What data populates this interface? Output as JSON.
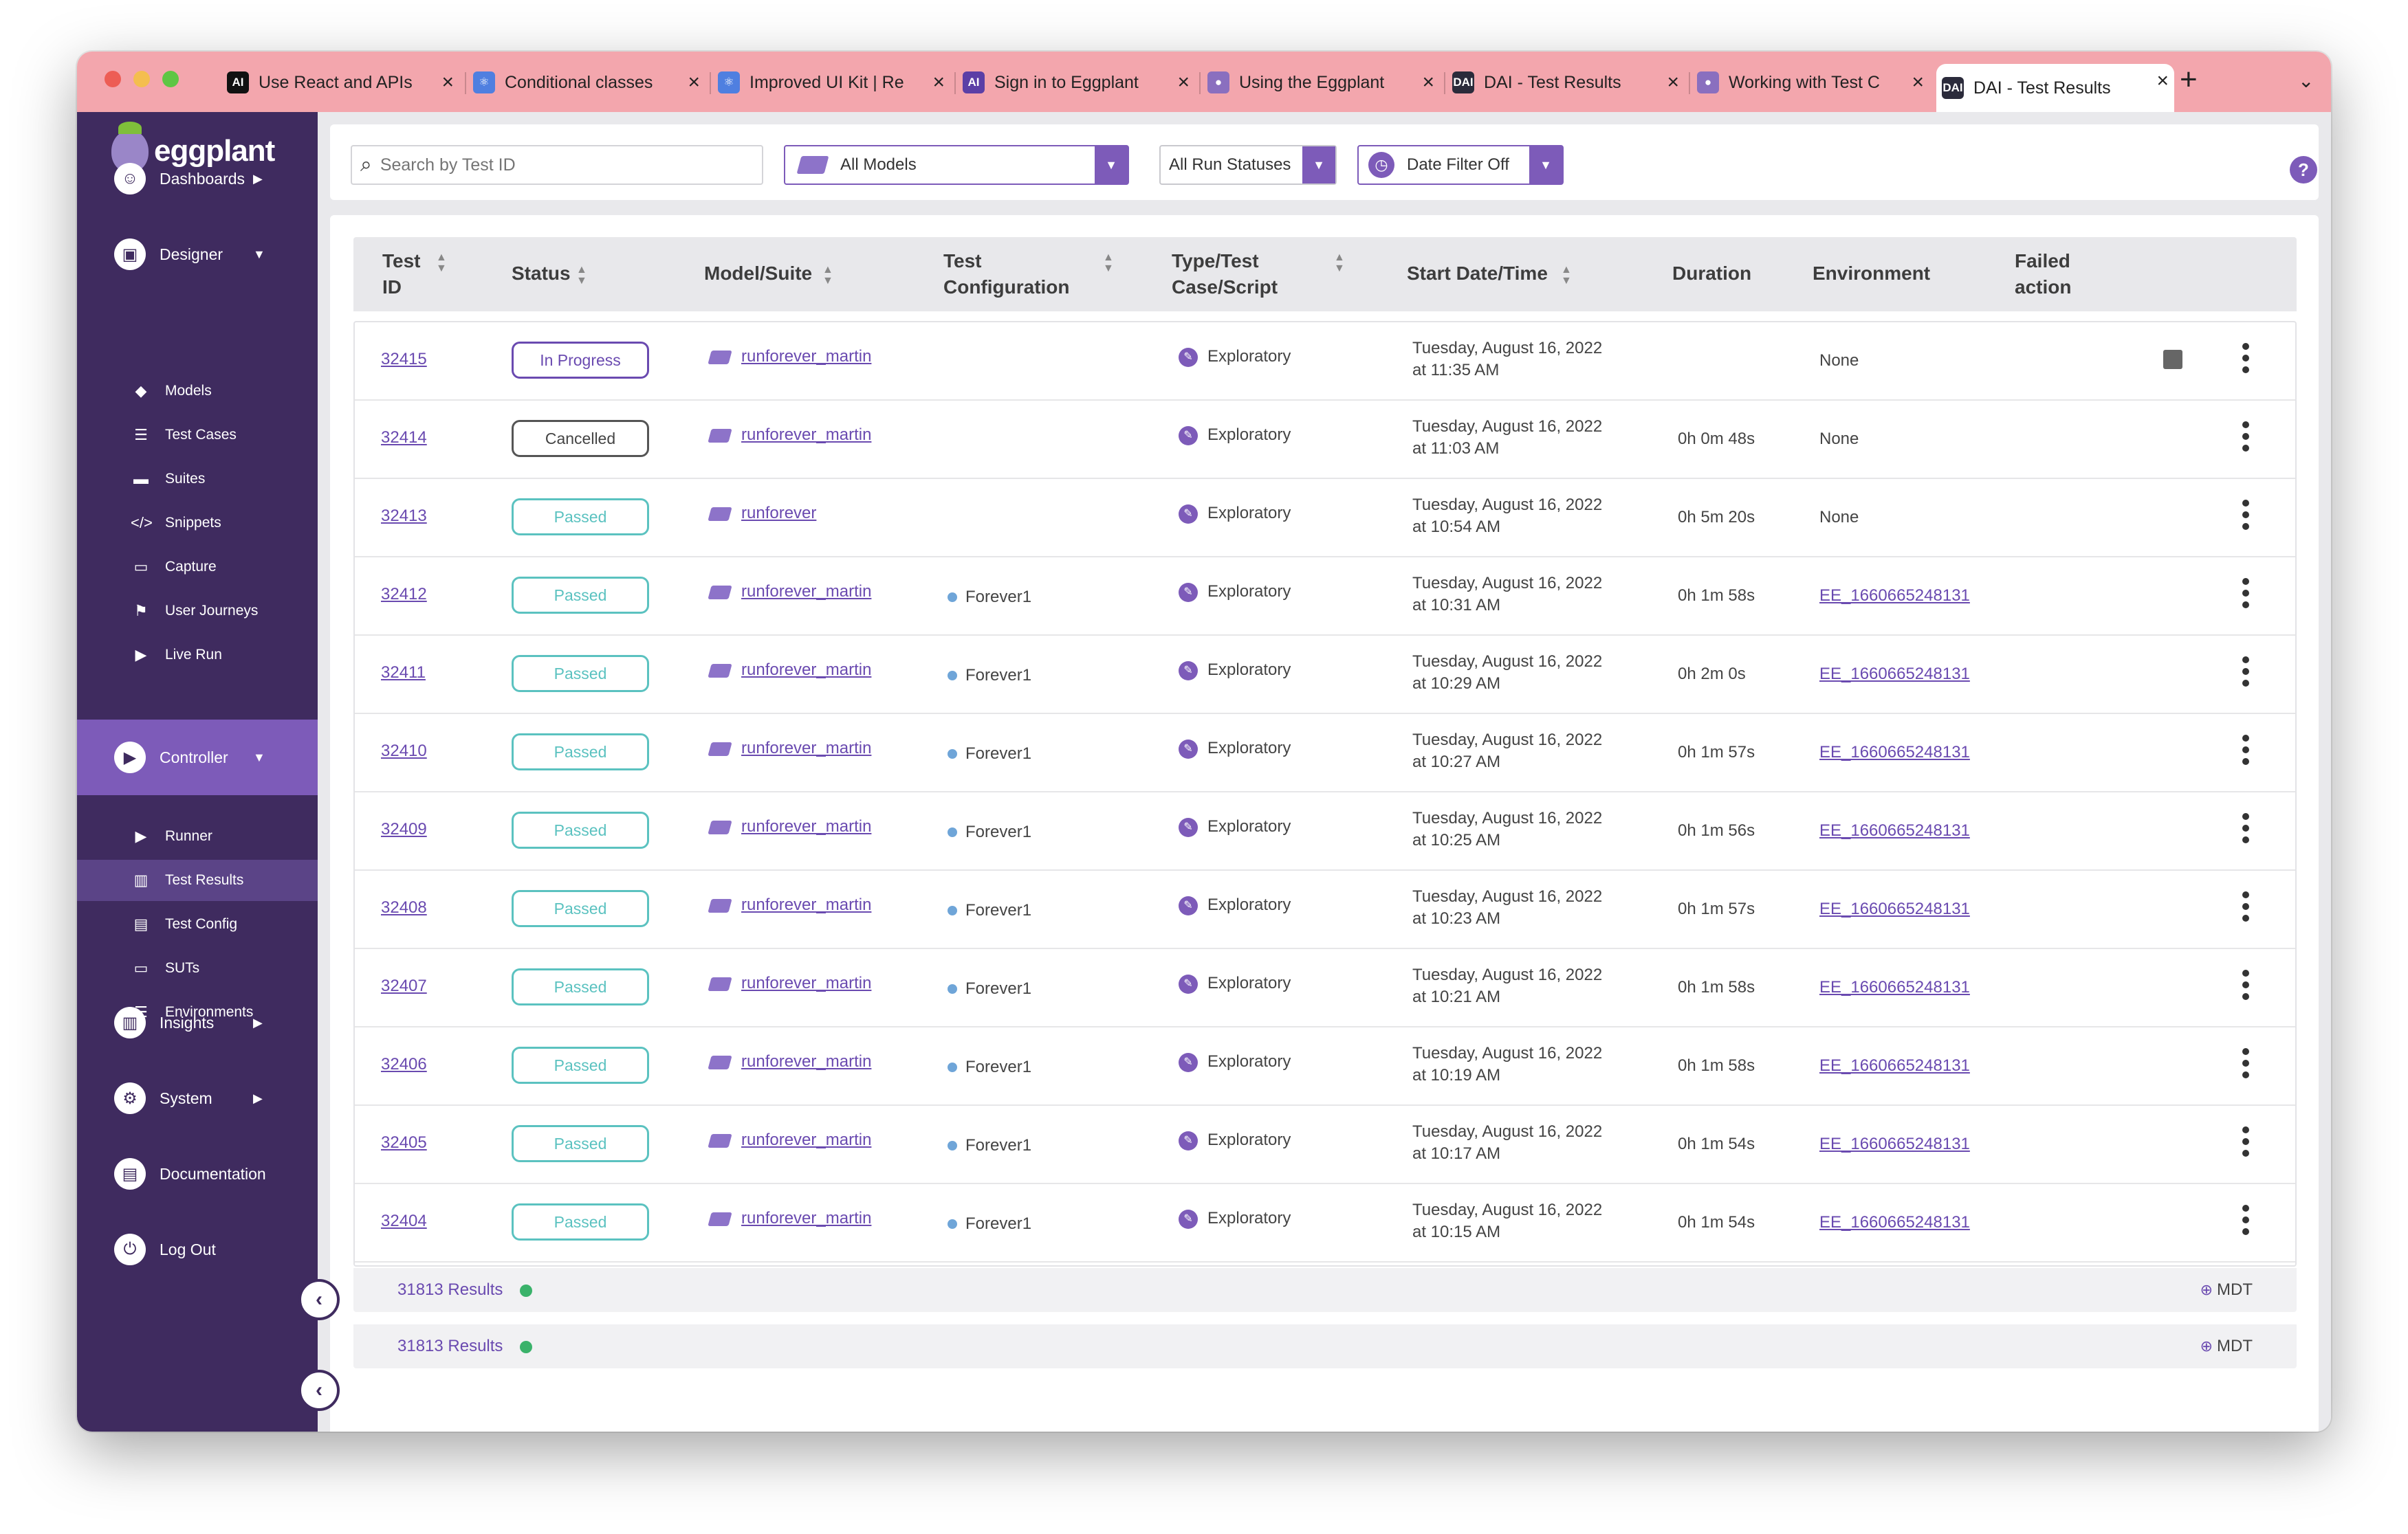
{
  "browser": {
    "tabs": [
      {
        "label": "Use React and APIs",
        "favicon": "AI",
        "favicon_color": "#111111"
      },
      {
        "label": "Conditional classes",
        "favicon": "⚛",
        "favicon_color": "#4f7fe0"
      },
      {
        "label": "Improved UI Kit | Re",
        "favicon": "⚛",
        "favicon_color": "#4f7fe0"
      },
      {
        "label": "Sign in to Eggplant",
        "favicon": "AI",
        "favicon_color": "#5b3fa6"
      },
      {
        "label": "Using the Eggplant",
        "favicon": "●",
        "favicon_color": "#8a6fbf"
      },
      {
        "label": "DAI - Test Results",
        "favicon": "DAI",
        "favicon_color": "#2b2b3b"
      },
      {
        "label": "Working with Test C",
        "favicon": "●",
        "favicon_color": "#8a6fbf"
      },
      {
        "label": "DAI - Test Results",
        "favicon": "DAI",
        "favicon_color": "#2b2b3b",
        "active": true
      }
    ],
    "new_tab": "+",
    "tab_menu": "⌄"
  },
  "sidebar": {
    "brand": "eggplant",
    "nav": [
      {
        "label": "Dashboards",
        "icon": "dashboard-icon",
        "glyph": "☺",
        "caret": "▶"
      },
      {
        "label": "Designer",
        "icon": "designer-icon",
        "glyph": "▣",
        "caret": "▼"
      },
      {
        "label": "Controller",
        "icon": "controller-icon",
        "glyph": "▶",
        "caret": "▼"
      },
      {
        "label": "Insights",
        "icon": "insights-icon",
        "glyph": "▥",
        "caret": "▶"
      },
      {
        "label": "System",
        "icon": "system-icon",
        "glyph": "⚙",
        "caret": "▶"
      },
      {
        "label": "Documentation",
        "icon": "documentation-icon",
        "glyph": "▤",
        "caret": ""
      },
      {
        "label": "Log Out",
        "icon": "logout-icon",
        "glyph": "⏻",
        "caret": ""
      }
    ],
    "designer_items": [
      {
        "label": "Models",
        "glyph": "◆"
      },
      {
        "label": "Test Cases",
        "glyph": "☰"
      },
      {
        "label": "Suites",
        "glyph": "▬"
      },
      {
        "label": "Snippets",
        "glyph": "</>"
      },
      {
        "label": "Capture",
        "glyph": "▭"
      },
      {
        "label": "User Journeys",
        "glyph": "⚑"
      },
      {
        "label": "Live Run",
        "glyph": "▶"
      }
    ],
    "controller_items": [
      {
        "label": "Runner",
        "glyph": "▶"
      },
      {
        "label": "Test Results",
        "glyph": "▥"
      },
      {
        "label": "Test Config",
        "glyph": "▤"
      },
      {
        "label": "SUTs",
        "glyph": "▭"
      },
      {
        "label": "Environments",
        "glyph": "☰"
      }
    ],
    "collapse_glyph": "‹"
  },
  "filters": {
    "search_placeholder": "Search by Test ID",
    "model_select": "All Models",
    "status_select": "All Run Statuses",
    "date_select": "Date Filter Off",
    "help": "?"
  },
  "table": {
    "headers": {
      "test_id": [
        "Test",
        "ID"
      ],
      "status": "Status",
      "model": "Model/Suite",
      "config": [
        "Test",
        "Configuration"
      ],
      "type": [
        "Type/Test",
        "Case/Script"
      ],
      "start": "Start Date/Time",
      "duration": "Duration",
      "environment": "Environment",
      "failed": [
        "Failed",
        "action"
      ]
    },
    "rows": [
      {
        "id": "32415",
        "status": "In Progress",
        "status_kind": "inprogress",
        "model": "runforever_martin",
        "config": "",
        "type": "Exploratory",
        "date": "Tuesday, August 16, 2022",
        "time": "at 11:35 AM",
        "duration": "",
        "environment": "None",
        "env_link": false,
        "stop": true
      },
      {
        "id": "32414",
        "status": "Cancelled",
        "status_kind": "cancelled",
        "model": "runforever_martin",
        "config": "",
        "type": "Exploratory",
        "date": "Tuesday, August 16, 2022",
        "time": "at 11:03 AM",
        "duration": "0h 0m 48s",
        "environment": "None",
        "env_link": false
      },
      {
        "id": "32413",
        "status": "Passed",
        "status_kind": "passed",
        "model": "runforever",
        "config": "",
        "type": "Exploratory",
        "date": "Tuesday, August 16, 2022",
        "time": "at 10:54 AM",
        "duration": "0h 5m 20s",
        "environment": "None",
        "env_link": false
      },
      {
        "id": "32412",
        "status": "Passed",
        "status_kind": "passed",
        "model": "runforever_martin",
        "config": "Forever1",
        "type": "Exploratory",
        "date": "Tuesday, August 16, 2022",
        "time": "at 10:31 AM",
        "duration": "0h 1m 58s",
        "environment": "EE_1660665248131",
        "env_link": true
      },
      {
        "id": "32411",
        "status": "Passed",
        "status_kind": "passed",
        "model": "runforever_martin",
        "config": "Forever1",
        "type": "Exploratory",
        "date": "Tuesday, August 16, 2022",
        "time": "at 10:29 AM",
        "duration": "0h 2m 0s",
        "environment": "EE_1660665248131",
        "env_link": true
      },
      {
        "id": "32410",
        "status": "Passed",
        "status_kind": "passed",
        "model": "runforever_martin",
        "config": "Forever1",
        "type": "Exploratory",
        "date": "Tuesday, August 16, 2022",
        "time": "at 10:27 AM",
        "duration": "0h 1m 57s",
        "environment": "EE_1660665248131",
        "env_link": true
      },
      {
        "id": "32409",
        "status": "Passed",
        "status_kind": "passed",
        "model": "runforever_martin",
        "config": "Forever1",
        "type": "Exploratory",
        "date": "Tuesday, August 16, 2022",
        "time": "at 10:25 AM",
        "duration": "0h 1m 56s",
        "environment": "EE_1660665248131",
        "env_link": true
      },
      {
        "id": "32408",
        "status": "Passed",
        "status_kind": "passed",
        "model": "runforever_martin",
        "config": "Forever1",
        "type": "Exploratory",
        "date": "Tuesday, August 16, 2022",
        "time": "at 10:23 AM",
        "duration": "0h 1m 57s",
        "environment": "EE_1660665248131",
        "env_link": true
      },
      {
        "id": "32407",
        "status": "Passed",
        "status_kind": "passed",
        "model": "runforever_martin",
        "config": "Forever1",
        "type": "Exploratory",
        "date": "Tuesday, August 16, 2022",
        "time": "at 10:21 AM",
        "duration": "0h 1m 58s",
        "environment": "EE_1660665248131",
        "env_link": true
      },
      {
        "id": "32406",
        "status": "Passed",
        "status_kind": "passed",
        "model": "runforever_martin",
        "config": "Forever1",
        "type": "Exploratory",
        "date": "Tuesday, August 16, 2022",
        "time": "at 10:19 AM",
        "duration": "0h 1m 58s",
        "environment": "EE_1660665248131",
        "env_link": true
      },
      {
        "id": "32405",
        "status": "Passed",
        "status_kind": "passed",
        "model": "runforever_martin",
        "config": "Forever1",
        "type": "Exploratory",
        "date": "Tuesday, August 16, 2022",
        "time": "at 10:17 AM",
        "duration": "0h 1m 54s",
        "environment": "EE_1660665248131",
        "env_link": true
      },
      {
        "id": "32404",
        "status": "Passed",
        "status_kind": "passed",
        "model": "runforever_martin",
        "config": "Forever1",
        "type": "Exploratory",
        "date": "Tuesday, August 16, 2022",
        "time": "at 10:15 AM",
        "duration": "0h 1m 54s",
        "environment": "EE_1660665248131",
        "env_link": true
      }
    ],
    "results_count": "31813 Results",
    "timezone": "MDT"
  },
  "colors": {
    "sidebar": "#3f2b5f",
    "accent": "#7d5bb9",
    "passed": "#5bc2c0",
    "tabbar": "#f3a6ad"
  }
}
